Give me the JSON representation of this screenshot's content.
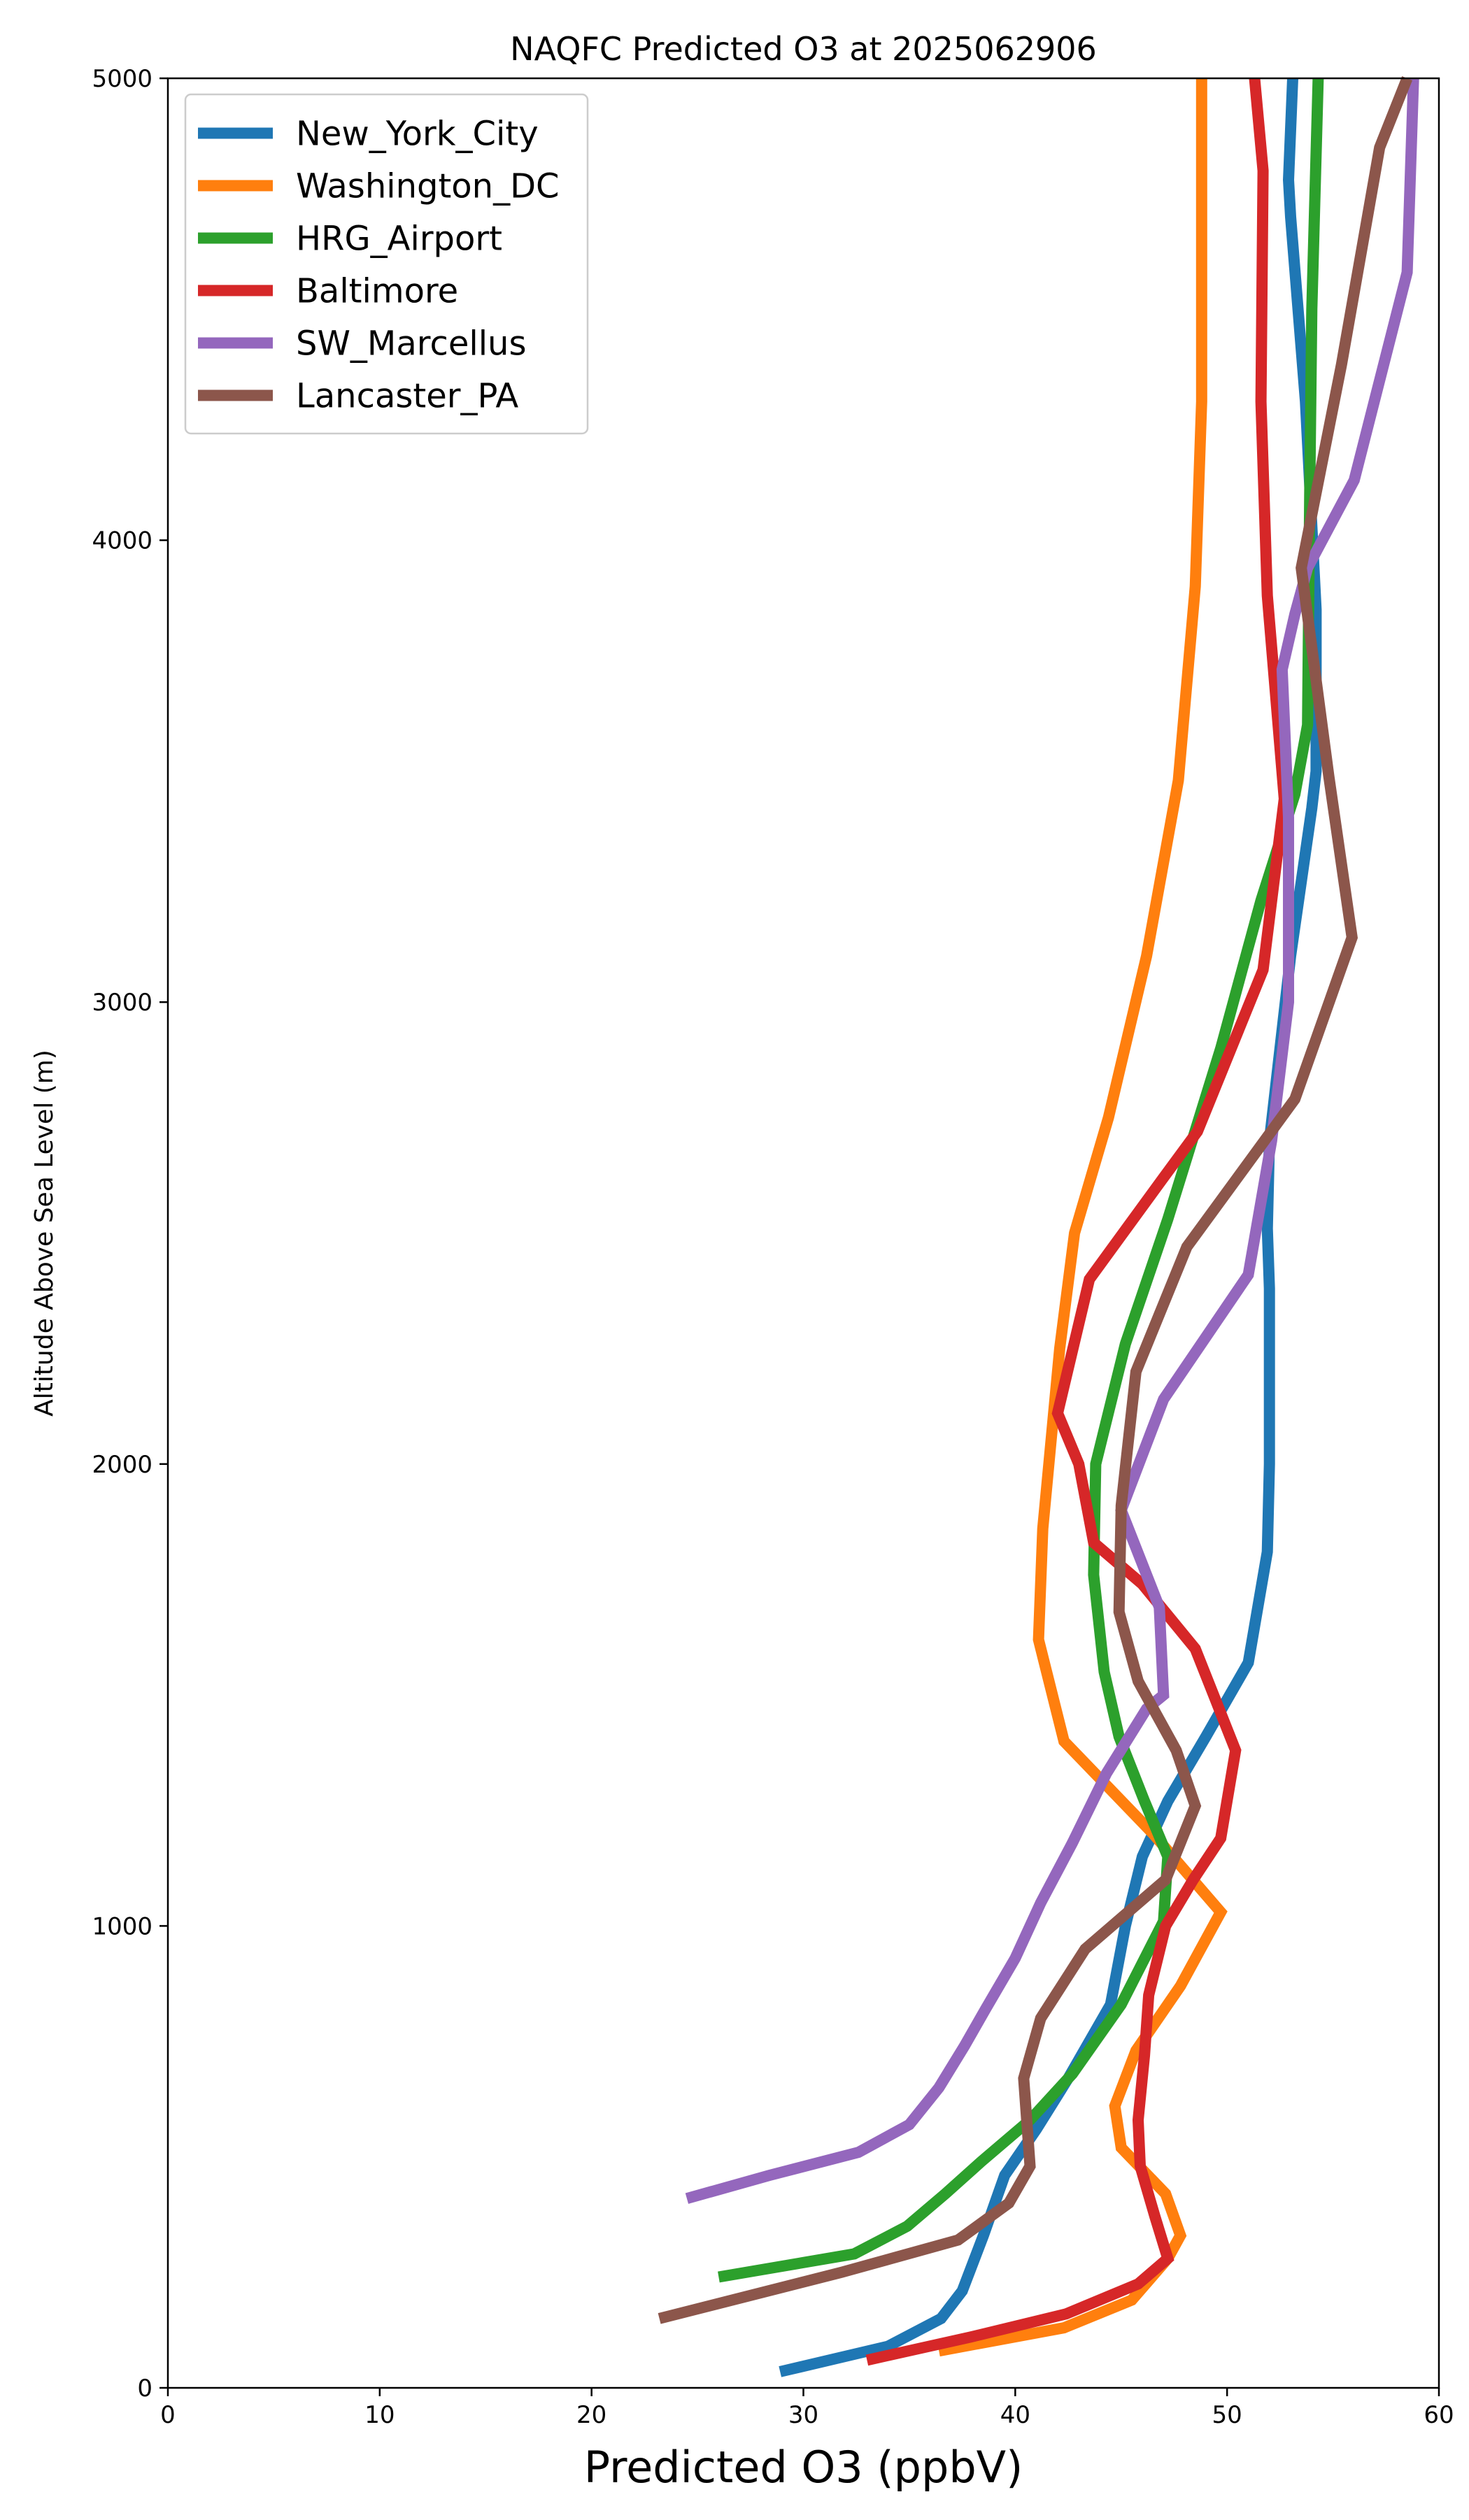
{
  "chart_data": {
    "type": "line",
    "title": "NAQFC Predicted O3 at 2025062906",
    "xlabel": "Predicted O3 (ppbV)",
    "ylabel": "Altitude Above Sea Level (m)",
    "xlim": [
      0,
      60
    ],
    "ylim": [
      0,
      5000
    ],
    "xticks": [
      0,
      10,
      20,
      30,
      40,
      50,
      60
    ],
    "yticks": [
      0,
      1000,
      2000,
      3000,
      4000,
      5000
    ],
    "grid": false,
    "legend_position": "upper-left",
    "series": [
      {
        "name": "New_York_City",
        "color": "#1f77b4",
        "points": [
          [
            28.9,
            35
          ],
          [
            34.0,
            90
          ],
          [
            36.5,
            150
          ],
          [
            37.5,
            210
          ],
          [
            38.5,
            330
          ],
          [
            39.5,
            460
          ],
          [
            41.0,
            560
          ],
          [
            42.5,
            670
          ],
          [
            44.5,
            830
          ],
          [
            45.2,
            1000
          ],
          [
            46.0,
            1150
          ],
          [
            47.2,
            1270
          ],
          [
            49.0,
            1410
          ],
          [
            51.0,
            1570
          ],
          [
            51.9,
            1810
          ],
          [
            52.0,
            2000
          ],
          [
            52.0,
            2380
          ],
          [
            51.9,
            2510
          ],
          [
            52.0,
            2700
          ],
          [
            53.0,
            3100
          ],
          [
            54.0,
            3420
          ],
          [
            54.2,
            3500
          ],
          [
            54.2,
            3850
          ],
          [
            53.7,
            4300
          ],
          [
            53.0,
            4700
          ],
          [
            52.9,
            4780
          ],
          [
            53.1,
            5000
          ]
        ]
      },
      {
        "name": "Washington_DC",
        "color": "#ff7f0e",
        "points": [
          [
            36.4,
            80
          ],
          [
            42.3,
            130
          ],
          [
            45.5,
            190
          ],
          [
            47.2,
            280
          ],
          [
            47.8,
            330
          ],
          [
            47.1,
            420
          ],
          [
            45.0,
            520
          ],
          [
            44.7,
            610
          ],
          [
            45.7,
            730
          ],
          [
            47.8,
            870
          ],
          [
            49.7,
            1030
          ],
          [
            46.5,
            1200
          ],
          [
            42.3,
            1400
          ],
          [
            41.1,
            1620
          ],
          [
            41.3,
            1860
          ],
          [
            42.1,
            2250
          ],
          [
            42.8,
            2500
          ],
          [
            44.4,
            2750
          ],
          [
            46.2,
            3100
          ],
          [
            47.7,
            3480
          ],
          [
            48.5,
            3900
          ],
          [
            48.8,
            4300
          ],
          [
            48.8,
            5000
          ]
        ]
      },
      {
        "name": "HRG_Airport",
        "color": "#2ca02c",
        "points": [
          [
            26.0,
            240
          ],
          [
            32.4,
            290
          ],
          [
            34.9,
            350
          ],
          [
            36.7,
            420
          ],
          [
            38.4,
            490
          ],
          [
            40.7,
            580
          ],
          [
            42.7,
            680
          ],
          [
            45.0,
            830
          ],
          [
            47.0,
            1010
          ],
          [
            47.2,
            1150
          ],
          [
            46.1,
            1270
          ],
          [
            44.9,
            1410
          ],
          [
            44.2,
            1550
          ],
          [
            43.7,
            1760
          ],
          [
            43.8,
            2000
          ],
          [
            45.2,
            2260
          ],
          [
            47.2,
            2530
          ],
          [
            49.7,
            2900
          ],
          [
            51.6,
            3220
          ],
          [
            53.2,
            3450
          ],
          [
            53.8,
            3600
          ],
          [
            53.9,
            4100
          ],
          [
            54.0,
            4500
          ],
          [
            54.3,
            5000
          ]
        ]
      },
      {
        "name": "Baltimore",
        "color": "#d62728",
        "points": [
          [
            33.0,
            60
          ],
          [
            37.9,
            110
          ],
          [
            42.4,
            160
          ],
          [
            45.8,
            225
          ],
          [
            47.2,
            280
          ],
          [
            46.6,
            370
          ],
          [
            45.9,
            480
          ],
          [
            45.8,
            580
          ],
          [
            46.1,
            720
          ],
          [
            46.3,
            850
          ],
          [
            47.1,
            1000
          ],
          [
            48.4,
            1100
          ],
          [
            49.7,
            1190
          ],
          [
            50.4,
            1380
          ],
          [
            48.5,
            1600
          ],
          [
            46.0,
            1740
          ],
          [
            43.7,
            1830
          ],
          [
            43.0,
            2000
          ],
          [
            42.0,
            2110
          ],
          [
            43.5,
            2400
          ],
          [
            47.0,
            2620
          ],
          [
            48.6,
            2720
          ],
          [
            51.7,
            3070
          ],
          [
            52.7,
            3440
          ],
          [
            51.9,
            3880
          ],
          [
            51.6,
            4300
          ],
          [
            51.7,
            4800
          ],
          [
            51.3,
            5000
          ]
        ]
      },
      {
        "name": "SW_Marcellus",
        "color": "#9467bd",
        "points": [
          [
            24.5,
            410
          ],
          [
            28.4,
            460
          ],
          [
            32.6,
            510
          ],
          [
            35.0,
            570
          ],
          [
            36.4,
            650
          ],
          [
            37.6,
            740
          ],
          [
            38.6,
            820
          ],
          [
            40.0,
            930
          ],
          [
            41.2,
            1050
          ],
          [
            42.7,
            1180
          ],
          [
            44.3,
            1330
          ],
          [
            46.2,
            1470
          ],
          [
            47.0,
            1500
          ],
          [
            46.8,
            1690
          ],
          [
            45.0,
            1900
          ],
          [
            47.0,
            2140
          ],
          [
            51.0,
            2410
          ],
          [
            52.1,
            2700
          ],
          [
            52.9,
            3000
          ],
          [
            52.9,
            3400
          ],
          [
            52.6,
            3720
          ],
          [
            53.2,
            3840
          ],
          [
            53.8,
            3940
          ],
          [
            56.0,
            4130
          ],
          [
            58.5,
            4580
          ],
          [
            58.8,
            5000
          ]
        ]
      },
      {
        "name": "Lancaster_PA",
        "color": "#8c564b",
        "points": [
          [
            23.2,
            150
          ],
          [
            31.8,
            250
          ],
          [
            37.3,
            320
          ],
          [
            39.7,
            400
          ],
          [
            40.7,
            480
          ],
          [
            40.4,
            670
          ],
          [
            41.2,
            800
          ],
          [
            43.3,
            950
          ],
          [
            47.1,
            1100
          ],
          [
            48.5,
            1260
          ],
          [
            47.6,
            1380
          ],
          [
            45.8,
            1530
          ],
          [
            44.9,
            1680
          ],
          [
            45.0,
            1910
          ],
          [
            45.7,
            2200
          ],
          [
            48.1,
            2470
          ],
          [
            53.2,
            2790
          ],
          [
            55.9,
            3140
          ],
          [
            54.8,
            3490
          ],
          [
            53.5,
            3940
          ],
          [
            55.4,
            4380
          ],
          [
            57.2,
            4850
          ],
          [
            58.5,
            5000
          ]
        ]
      }
    ]
  }
}
